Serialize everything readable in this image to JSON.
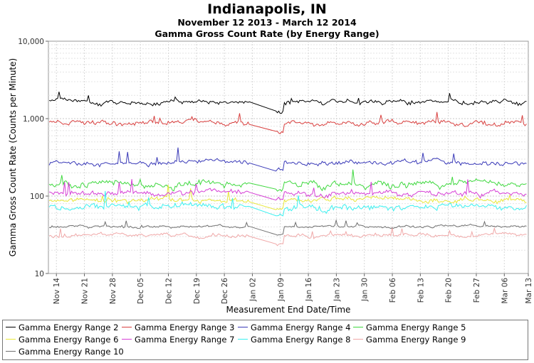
{
  "header": {
    "title": "Indianapolis, IN",
    "date_range": "November 12 2013 - March 12 2014",
    "subtitle": "Gamma Gross Count Rate (by Energy Range)"
  },
  "chart_data": {
    "type": "line",
    "title": "Indianapolis, IN",
    "subtitle": "Gamma Gross Count Rate (by Energy Range)",
    "xlabel": "Measurement End Date/Time",
    "ylabel": "Gamma Gross Count Rate (Counts per Minute)",
    "yscale": "log",
    "ylim": [
      10,
      10000
    ],
    "y_ticks": [
      "10",
      "100",
      "1,000",
      "10,000"
    ],
    "x_range_days": [
      0,
      120
    ],
    "x_ticks": [
      {
        "label": "Nov 14",
        "day": 2
      },
      {
        "label": "Nov 21",
        "day": 9
      },
      {
        "label": "Nov 28",
        "day": 16
      },
      {
        "label": "Dec 05",
        "day": 23
      },
      {
        "label": "Dec 12",
        "day": 30
      },
      {
        "label": "Dec 19",
        "day": 37
      },
      {
        "label": "Dec 26",
        "day": 44
      },
      {
        "label": "Jan 02",
        "day": 51
      },
      {
        "label": "Jan 09",
        "day": 58
      },
      {
        "label": "Jan 16",
        "day": 65
      },
      {
        "label": "Jan 23",
        "day": 72
      },
      {
        "label": "Jan 30",
        "day": 79
      },
      {
        "label": "Feb 06",
        "day": 86
      },
      {
        "label": "Feb 13",
        "day": 93
      },
      {
        "label": "Feb 20",
        "day": 100
      },
      {
        "label": "Feb 27",
        "day": 107
      },
      {
        "label": "Mar 06",
        "day": 114
      },
      {
        "label": "Mar 13",
        "day": 121
      }
    ],
    "data_gap_days": [
      50,
      57
    ],
    "grid": true,
    "legend_position": "bottom",
    "series": [
      {
        "name": "Gamma Energy Range 2",
        "color": "#000000",
        "base": 1650,
        "noise": 0.07,
        "spike": 0.35,
        "seed": 2
      },
      {
        "name": "Gamma Energy Range 3",
        "color": "#d9403f",
        "base": 880,
        "noise": 0.08,
        "spike": 0.4,
        "seed": 3
      },
      {
        "name": "Gamma Energy Range 4",
        "color": "#3a3ab8",
        "base": 270,
        "noise": 0.08,
        "spike": 0.5,
        "seed": 4
      },
      {
        "name": "Gamma Energy Range 5",
        "color": "#3fd83f",
        "base": 145,
        "noise": 0.1,
        "spike": 0.55,
        "seed": 5
      },
      {
        "name": "Gamma Energy Range 6",
        "color": "#e8e83a",
        "base": 90,
        "noise": 0.08,
        "spike": 0.45,
        "seed": 6
      },
      {
        "name": "Gamma Energy Range 7",
        "color": "#d63fd6",
        "base": 110,
        "noise": 0.09,
        "spike": 0.5,
        "seed": 7
      },
      {
        "name": "Gamma Energy Range 8",
        "color": "#3af0f0",
        "base": 72,
        "noise": 0.1,
        "spike": 0.6,
        "seed": 8
      },
      {
        "name": "Gamma Energy Range 9",
        "color": "#f0a8a8",
        "base": 31,
        "noise": 0.06,
        "spike": 0.3,
        "seed": 9
      },
      {
        "name": "Gamma Energy Range 10",
        "color": "#707070",
        "base": 40,
        "noise": 0.04,
        "spike": 0.2,
        "seed": 10
      }
    ]
  }
}
